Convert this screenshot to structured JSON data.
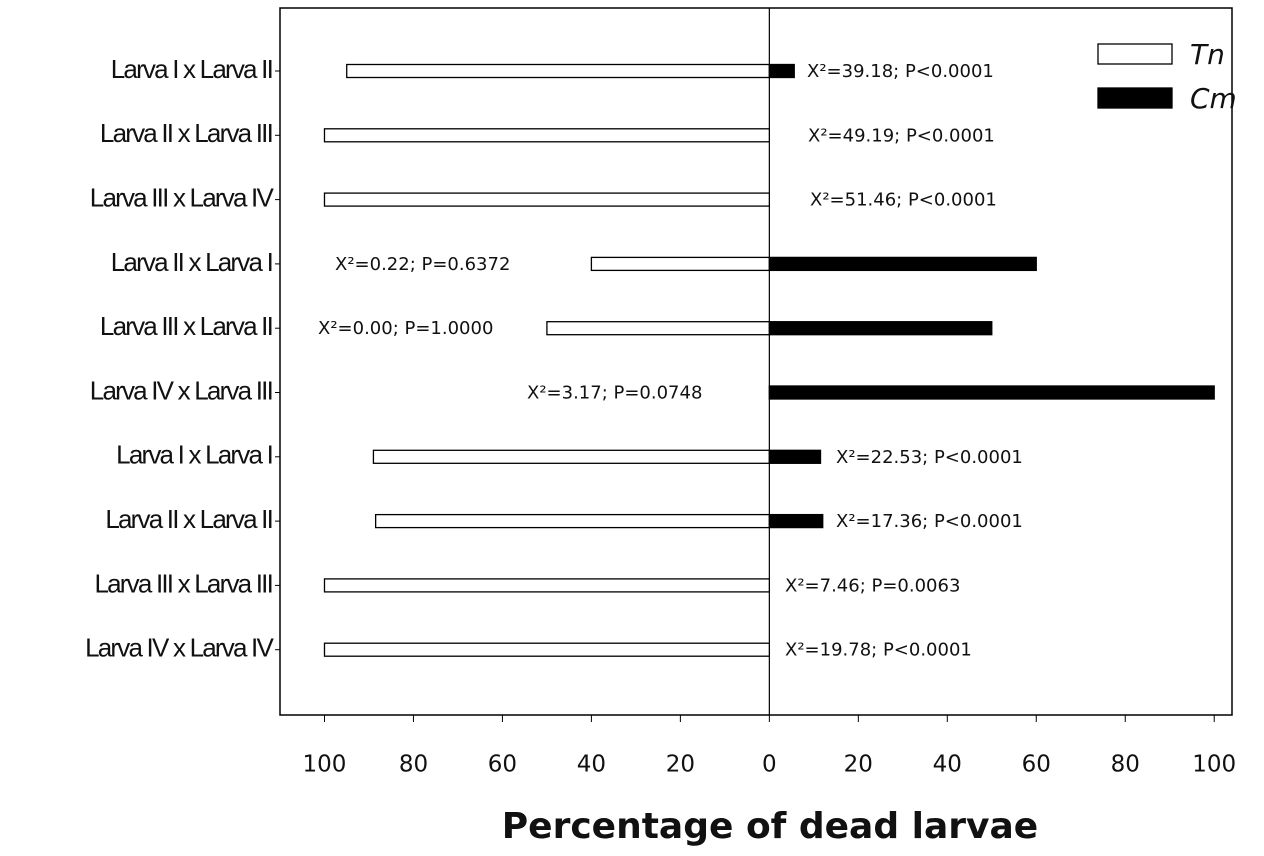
{
  "chart_data": {
    "type": "bar",
    "orientation": "horizontal",
    "xlabel": "Percentage of dead larvae",
    "categories": [
      "Larva I x Larva II",
      "Larva II x Larva III",
      "Larva III x Larva IV",
      "Larva II x Larva I",
      "Larva III x Larva II",
      "Larva IV x Larva III",
      "Larva I x Larva I",
      "Larva II x Larva II",
      "Larva III x Larva III",
      "Larva IV x Larva IV"
    ],
    "series": [
      {
        "name": "Tn",
        "color": "#ffffff",
        "values": [
          -95,
          -100,
          -100,
          -40,
          -50,
          0,
          -89,
          -88.5,
          -100,
          -100
        ]
      },
      {
        "name": "Cm",
        "color": "#000000",
        "values": [
          5.6,
          0,
          0,
          60,
          50,
          100,
          11.5,
          12,
          0,
          0
        ]
      }
    ],
    "annotations": [
      "X²=39.18; P<0.0001",
      "X²=49.19; P<0.0001",
      "X²=51.46; P<0.0001",
      "X²=0.22; P=0.6372",
      "X²=0.00; P=1.0000",
      "X²=3.17; P=0.0748",
      "X²=22.53; P<0.0001",
      "X²=17.36; P<0.0001",
      "X²=7.46; P=0.0063",
      "X²=19.78; P<0.0001"
    ],
    "xlim": [
      -110,
      104
    ],
    "xticks": [
      {
        "value": -100,
        "label": "100"
      },
      {
        "value": -80,
        "label": "80"
      },
      {
        "value": -60,
        "label": "60"
      },
      {
        "value": -40,
        "label": "40"
      },
      {
        "value": -20,
        "label": "20"
      },
      0,
      20,
      40,
      60,
      80,
      100
    ],
    "legend": "upper right",
    "grid": false
  }
}
